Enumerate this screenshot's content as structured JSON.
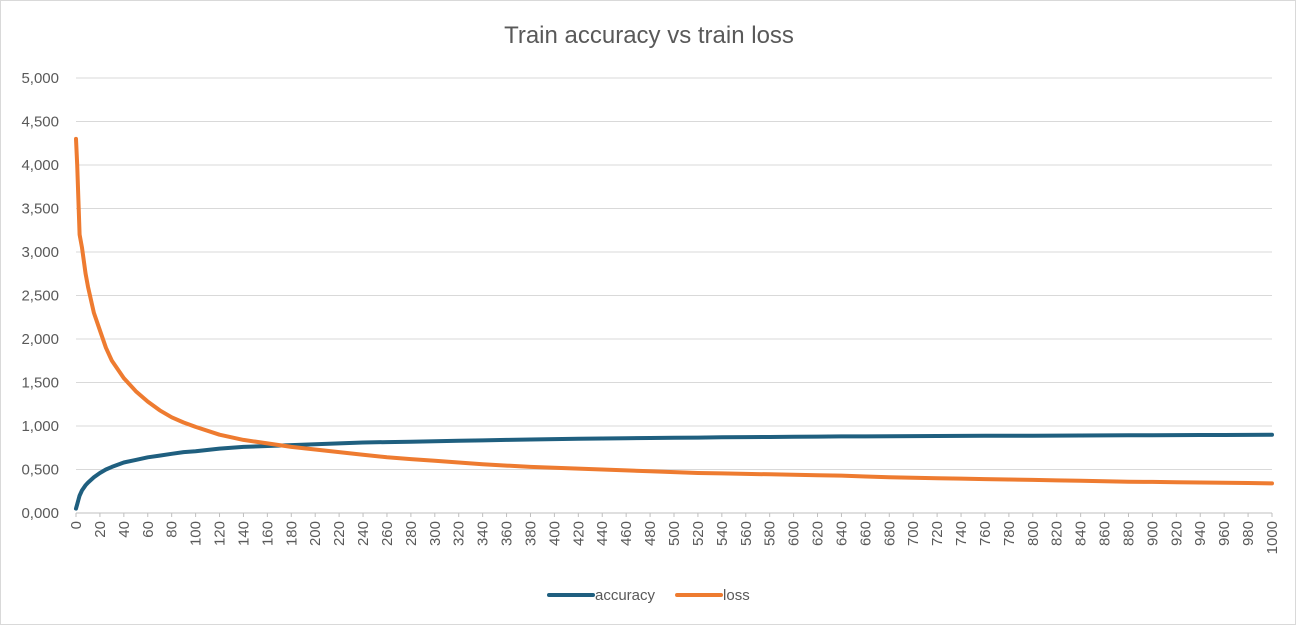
{
  "chart_data": {
    "type": "line",
    "title": "Train accuracy vs train loss",
    "xlabel": "",
    "ylabel": "",
    "xlim": [
      0,
      1000
    ],
    "ylim": [
      0,
      5
    ],
    "y_ticks": [
      "0,000",
      "0,500",
      "1,000",
      "1,500",
      "2,000",
      "2,500",
      "3,000",
      "3,500",
      "4,000",
      "4,500",
      "5,000"
    ],
    "x_ticks": [
      "0",
      "20",
      "40",
      "60",
      "80",
      "100",
      "120",
      "140",
      "160",
      "180",
      "200",
      "220",
      "240",
      "260",
      "280",
      "300",
      "320",
      "340",
      "360",
      "380",
      "400",
      "420",
      "440",
      "460",
      "480",
      "500",
      "520",
      "540",
      "560",
      "580",
      "600",
      "620",
      "640",
      "660",
      "680",
      "700",
      "720",
      "740",
      "760",
      "780",
      "800",
      "820",
      "840",
      "860",
      "880",
      "900",
      "920",
      "940",
      "960",
      "980",
      "1000"
    ],
    "grid": true,
    "legend_position": "bottom",
    "colors": {
      "accuracy": "#1f5f7f",
      "loss": "#ee7b30"
    },
    "series": [
      {
        "name": "accuracy",
        "x": [
          0,
          1,
          2,
          3,
          5,
          8,
          10,
          15,
          20,
          25,
          30,
          40,
          50,
          60,
          70,
          80,
          90,
          100,
          120,
          140,
          160,
          180,
          200,
          220,
          240,
          260,
          280,
          300,
          320,
          340,
          360,
          380,
          400,
          420,
          440,
          460,
          480,
          500,
          520,
          540,
          560,
          580,
          600,
          620,
          640,
          660,
          680,
          700,
          720,
          740,
          760,
          780,
          800,
          820,
          840,
          860,
          880,
          900,
          920,
          940,
          960,
          980,
          1000
        ],
        "values": [
          0.05,
          0.1,
          0.15,
          0.2,
          0.26,
          0.32,
          0.35,
          0.41,
          0.46,
          0.5,
          0.53,
          0.58,
          0.61,
          0.64,
          0.66,
          0.68,
          0.7,
          0.71,
          0.74,
          0.76,
          0.77,
          0.78,
          0.79,
          0.8,
          0.81,
          0.815,
          0.82,
          0.825,
          0.83,
          0.835,
          0.84,
          0.845,
          0.85,
          0.853,
          0.856,
          0.86,
          0.862,
          0.865,
          0.867,
          0.87,
          0.872,
          0.874,
          0.876,
          0.878,
          0.88,
          0.881,
          0.882,
          0.884,
          0.885,
          0.886,
          0.887,
          0.888,
          0.889,
          0.89,
          0.891,
          0.892,
          0.893,
          0.894,
          0.895,
          0.896,
          0.897,
          0.898,
          0.9
        ]
      },
      {
        "name": "loss",
        "x": [
          0,
          1,
          2,
          3,
          5,
          8,
          10,
          15,
          20,
          25,
          30,
          40,
          50,
          60,
          70,
          80,
          90,
          100,
          120,
          140,
          160,
          180,
          200,
          220,
          240,
          260,
          280,
          300,
          320,
          340,
          360,
          380,
          400,
          420,
          440,
          460,
          480,
          500,
          520,
          540,
          560,
          580,
          600,
          620,
          640,
          660,
          680,
          700,
          720,
          740,
          760,
          780,
          800,
          820,
          840,
          860,
          880,
          900,
          920,
          940,
          960,
          980,
          1000
        ],
        "values": [
          4.3,
          4.0,
          3.6,
          3.2,
          3.05,
          2.75,
          2.6,
          2.3,
          2.1,
          1.9,
          1.75,
          1.55,
          1.4,
          1.28,
          1.18,
          1.1,
          1.04,
          0.99,
          0.9,
          0.84,
          0.8,
          0.76,
          0.73,
          0.7,
          0.67,
          0.64,
          0.62,
          0.6,
          0.58,
          0.56,
          0.545,
          0.53,
          0.52,
          0.51,
          0.5,
          0.49,
          0.48,
          0.47,
          0.46,
          0.455,
          0.45,
          0.445,
          0.44,
          0.435,
          0.43,
          0.42,
          0.41,
          0.405,
          0.4,
          0.395,
          0.39,
          0.385,
          0.38,
          0.375,
          0.37,
          0.365,
          0.36,
          0.357,
          0.354,
          0.351,
          0.348,
          0.345,
          0.34
        ]
      }
    ]
  }
}
